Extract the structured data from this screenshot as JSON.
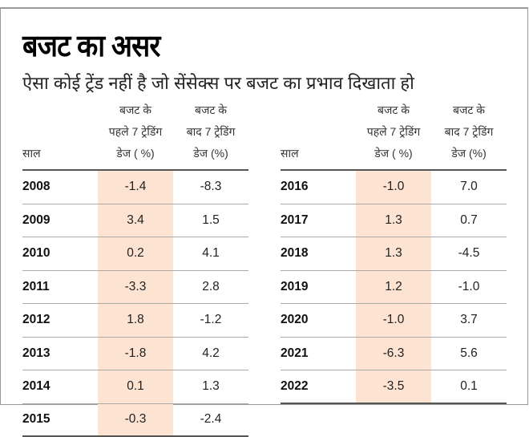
{
  "title": "बजट का असर",
  "subtitle": "ऐसा कोई ट्रेंड नहीं है जो सेंसेक्स पर बजट का प्रभाव दिखाता हो",
  "columns": {
    "year": "साल",
    "before": [
      "बजट के",
      "पहले 7 ट्रेडिंग",
      "डेज ( %)"
    ],
    "after": [
      "बजट के",
      "बाद 7 ट्रेडिंग",
      "डेज  (%)"
    ]
  },
  "highlight_color": "#fde3d2",
  "left_table": [
    {
      "year": "2008",
      "before": "-1.4",
      "after": "-8.3"
    },
    {
      "year": "2009",
      "before": "3.4",
      "after": "1.5"
    },
    {
      "year": "2010",
      "before": "0.2",
      "after": "4.1"
    },
    {
      "year": "2011",
      "before": "-3.3",
      "after": "2.8"
    },
    {
      "year": "2012",
      "before": "1.8",
      "after": "-1.2"
    },
    {
      "year": "2013",
      "before": "-1.8",
      "after": "4.2"
    },
    {
      "year": "2014",
      "before": "0.1",
      "after": "1.3"
    },
    {
      "year": "2015",
      "before": "-0.3",
      "after": "-2.4"
    }
  ],
  "right_table": [
    {
      "year": "2016",
      "before": "-1.0",
      "after": "7.0"
    },
    {
      "year": "2017",
      "before": "1.3",
      "after": "0.7"
    },
    {
      "year": "2018",
      "before": "1.3",
      "after": "-4.5"
    },
    {
      "year": "2019",
      "before": "1.2",
      "after": "-1.0"
    },
    {
      "year": "2020",
      "before": "-1.0",
      "after": "3.7"
    },
    {
      "year": "2021",
      "before": "-6.3",
      "after": "5.6"
    },
    {
      "year": "2022",
      "before": "-3.5",
      "after": "0.1"
    }
  ]
}
